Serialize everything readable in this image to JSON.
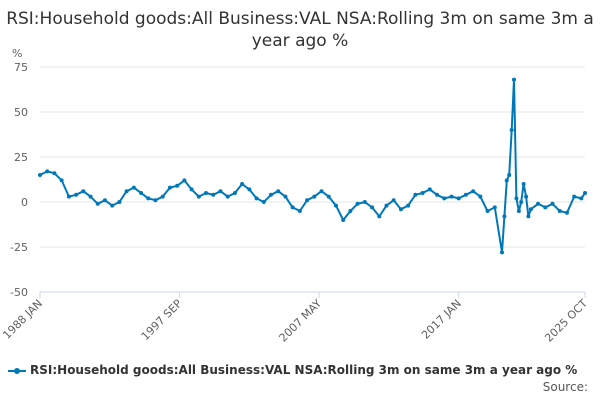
{
  "chart_data": {
    "type": "line",
    "title": "RSI:Household goods:All Business:VAL NSA:Rolling 3m on same 3m a year ago %",
    "ylabel": "%",
    "xlabel": "",
    "ylim": [
      -50,
      75
    ],
    "yticks": [
      75,
      50,
      25,
      0,
      -25,
      -50
    ],
    "xlim": [
      1988.0,
      2025.75
    ],
    "xticks": [
      {
        "label": "1988 JAN",
        "value": 1988.0
      },
      {
        "label": "1997 SEP",
        "value": 1997.67
      },
      {
        "label": "2007 MAY",
        "value": 2007.33
      },
      {
        "label": "2017 JAN",
        "value": 2017.0
      },
      {
        "label": "2025 OCT",
        "value": 2025.75
      }
    ],
    "grid": true,
    "legend_position": "bottom",
    "series": [
      {
        "name": "RSI:Household goods:All Business:VAL NSA:Rolling 3m on same 3m a year ago %",
        "color": "#0078b8",
        "x": [
          1988.0,
          1988.5,
          1989.0,
          1989.5,
          1990.0,
          1990.5,
          1991.0,
          1991.5,
          1992.0,
          1992.5,
          1993.0,
          1993.5,
          1994.0,
          1994.5,
          1995.0,
          1995.5,
          1996.0,
          1996.5,
          1997.0,
          1997.5,
          1998.0,
          1998.5,
          1999.0,
          1999.5,
          2000.0,
          2000.5,
          2001.0,
          2001.5,
          2002.0,
          2002.5,
          2003.0,
          2003.5,
          2004.0,
          2004.5,
          2005.0,
          2005.5,
          2006.0,
          2006.5,
          2007.0,
          2007.5,
          2008.0,
          2008.5,
          2009.0,
          2009.5,
          2010.0,
          2010.5,
          2011.0,
          2011.5,
          2012.0,
          2012.5,
          2013.0,
          2013.5,
          2014.0,
          2014.5,
          2015.0,
          2015.5,
          2016.0,
          2016.5,
          2017.0,
          2017.5,
          2018.0,
          2018.5,
          2019.0,
          2019.5,
          2020.0,
          2020.17,
          2020.33,
          2020.5,
          2020.67,
          2020.83,
          2021.0,
          2021.17,
          2021.33,
          2021.5,
          2021.67,
          2021.83,
          2022.0,
          2022.5,
          2023.0,
          2023.5,
          2024.0,
          2024.5,
          2025.0,
          2025.5,
          2025.75
        ],
        "values": [
          15,
          17,
          16,
          12,
          3,
          4,
          6,
          3,
          -1,
          1,
          -2,
          0,
          6,
          8,
          5,
          2,
          1,
          3,
          8,
          9,
          12,
          7,
          3,
          5,
          4,
          6,
          3,
          5,
          10,
          7,
          2,
          0,
          4,
          6,
          3,
          -3,
          -5,
          1,
          3,
          6,
          3,
          -2,
          -10,
          -5,
          -1,
          0,
          -3,
          -8,
          -2,
          1,
          -4,
          -2,
          4,
          5,
          7,
          4,
          2,
          3,
          2,
          4,
          6,
          3,
          -5,
          -3,
          -28,
          -8,
          12,
          15,
          40,
          68,
          2,
          -5,
          0,
          10,
          3,
          -8,
          -4,
          -1,
          -3,
          -1,
          -5,
          -6,
          3,
          2,
          5
        ]
      }
    ]
  },
  "source_label": "Source:"
}
